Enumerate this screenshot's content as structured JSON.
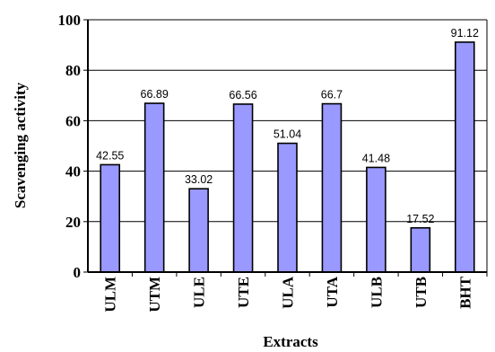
{
  "chart_data": {
    "type": "bar",
    "title": "",
    "xlabel": "Extracts",
    "ylabel": "Scavenging activity",
    "categories": [
      "ULM",
      "UTM",
      "ULE",
      "UTE",
      "ULA",
      "UTA",
      "ULB",
      "UTB",
      "BHT"
    ],
    "values": [
      42.55,
      66.89,
      33.02,
      66.56,
      51.04,
      66.7,
      41.48,
      17.52,
      91.12
    ],
    "data_labels": [
      "42.55",
      "66.89",
      "33.02",
      "66.56",
      "51.04",
      "66.7",
      "41.48",
      "17.52",
      "91.12"
    ],
    "ylim": [
      0,
      100
    ],
    "yticks": [
      "0",
      "20",
      "40",
      "60",
      "80",
      "100"
    ],
    "grid": "horizontal",
    "legend": "none",
    "colors": {
      "bar_fill": "#9999ff",
      "bar_stroke": "#000000",
      "grid": "#000000"
    }
  }
}
